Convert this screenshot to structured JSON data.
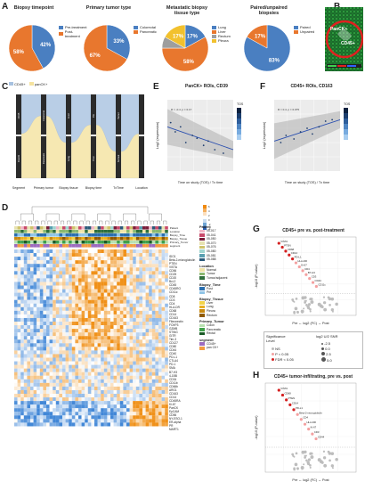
{
  "panelA": {
    "letter": "A",
    "pies": [
      {
        "title": "Biopsy timepoint",
        "values": [
          42,
          58
        ],
        "labels": [
          "42%",
          "58%"
        ],
        "legend": [
          "Pre-treatment",
          "Post-treatment"
        ],
        "colors": [
          "#4a7fc1",
          "#e8772e"
        ]
      },
      {
        "title": "Primary tumor type",
        "values": [
          33,
          67
        ],
        "labels": [
          "33%",
          "67%"
        ],
        "legend": [
          "Colorectal",
          "Pancreatic"
        ],
        "colors": [
          "#4a7fc1",
          "#e8772e"
        ]
      },
      {
        "title": "Metastatic biopsy tissue type",
        "values": [
          17,
          58,
          8,
          17
        ],
        "labels": [
          "17%",
          "58%",
          "",
          "17%"
        ],
        "legend": [
          "Lung",
          "Liver",
          "Rectum",
          "Pleura"
        ],
        "colors": [
          "#4a7fc1",
          "#e8772e",
          "#9e9e9e",
          "#f2c12e"
        ]
      },
      {
        "title": "Paired/unpaired biopsies",
        "values": [
          83,
          17
        ],
        "labels": [
          "83%",
          "17%"
        ],
        "legend": [
          "Paired",
          "Unpaired"
        ],
        "colors": [
          "#4a7fc1",
          "#e8772e"
        ]
      }
    ]
  },
  "panelB": {
    "letter": "B",
    "label1": "PanCK+",
    "label2": "CD45+"
  },
  "panelC": {
    "letter": "C",
    "legend": [
      "CD45+",
      "panCK+"
    ],
    "axis": [
      "Segment",
      "Primary tumor",
      "Biopsy tissue",
      "Biopsy time",
      "TxTime",
      "Location"
    ],
    "bar_labels": [
      "CD45",
      "PanCK",
      "Colorectal",
      "Pancreatic",
      "Liver",
      "Lung",
      "Pre",
      "Post",
      "Tumor",
      "Normal"
    ]
  },
  "panelE": {
    "letter": "E",
    "title": "PanCK+ ROIs, CD39",
    "xlabel": "Time on study (TOS) / Tx time",
    "ylabel": "Log2 (expression)",
    "stat": "R = -0.4, p = 0.17",
    "legend_title": "TOS",
    "chart_data": {
      "type": "scatter",
      "points": [
        [
          0.05,
          0.68
        ],
        [
          0.12,
          0.55
        ],
        [
          0.2,
          0.62
        ],
        [
          0.28,
          0.4
        ],
        [
          0.38,
          0.5
        ],
        [
          0.45,
          0.46
        ],
        [
          0.55,
          0.36
        ],
        [
          0.62,
          0.42
        ],
        [
          0.72,
          0.3
        ],
        [
          0.85,
          0.25
        ]
      ],
      "trend": [
        [
          0,
          0.62
        ],
        [
          1,
          0.3
        ]
      ]
    }
  },
  "panelF": {
    "letter": "F",
    "title": "CD45+ ROIs, CD163",
    "xlabel": "Time on study (TOS) / Tx time",
    "ylabel": "Log2 (expression)",
    "stat": "R = 0.4, p = 0.075",
    "legend_title": "TOS",
    "chart_data": {
      "type": "scatter",
      "points": [
        [
          0.1,
          0.4
        ],
        [
          0.18,
          0.5
        ],
        [
          0.3,
          0.45
        ],
        [
          0.4,
          0.55
        ],
        [
          0.5,
          0.6
        ],
        [
          0.58,
          0.52
        ],
        [
          0.68,
          0.62
        ],
        [
          0.78,
          0.7
        ],
        [
          0.88,
          0.72
        ]
      ],
      "trend": [
        [
          0,
          0.42
        ],
        [
          1,
          0.72
        ]
      ]
    }
  },
  "panelD": {
    "letter": "D",
    "row_labels": [
      "Patient",
      "Location",
      "Biopsy_Time",
      "Biopsy_Tissue",
      "Primary_Tumor",
      "segment"
    ],
    "genes": [
      "IDO1",
      "Beta-2-microglobulin",
      "PTEN",
      "VISTA",
      "CD56",
      "CD25",
      "CD20",
      "Bcl-2",
      "CD45",
      "CD45RO",
      "CD11c",
      "CD8",
      "CD3",
      "CD4",
      "HLA-DR",
      "CD68",
      "CD14",
      "CD163",
      "Fibronectin",
      "FOXP3",
      "GZMB",
      "STING",
      "GITR",
      "Tim-3",
      "CD127",
      "CD80",
      "CD44",
      "CD40",
      "PD-L1",
      "CTLA4",
      "PD-1",
      "SMA",
      "B7-H3",
      "4-1BB",
      "CD34",
      "CD11b",
      "CD66b",
      "ARG1",
      "CD163",
      "CD14",
      "CD45RA",
      "Ki-67",
      "PanCK",
      "EpCAM",
      "CD56",
      "NY-ESO-1",
      "ER-alpha",
      "PR",
      "MART1"
    ],
    "colorbar_ticks": [
      "6",
      "4",
      "2",
      "0",
      "-2",
      "-4"
    ],
    "legend": {
      "patient_title": "Patient",
      "patients": [
        "05-017",
        "05-041",
        "05-050",
        "05-070",
        "05-076",
        "05-080",
        "05-081",
        "05-088"
      ],
      "patient_colors": [
        "#f2b6c6",
        "#c94a6a",
        "#7a1e3a",
        "#e7e2b0",
        "#cfc36b",
        "#a0d6d0",
        "#5a9fb0",
        "#2c5a7a"
      ],
      "location_title": "Location",
      "locations": [
        "Normal",
        "Tumor",
        "Tumor/adjacent"
      ],
      "location_colors": [
        "#f0e4a8",
        "#8ab870",
        "#2f6f3c"
      ],
      "biopsy_time_title": "Biopsy_Time",
      "biopsy_times": [
        "Post",
        "Pre"
      ],
      "biopsy_time_colors": [
        "#2a6fb0",
        "#8fc4e6"
      ],
      "biopsy_tissue_title": "Biopsy_Tissue",
      "biopsy_tissues": [
        "Liver",
        "Lung",
        "Pleura",
        "Rectum"
      ],
      "biopsy_tissue_colors": [
        "#f2d34a",
        "#e8b020",
        "#c98a10",
        "#8f5a00"
      ],
      "primary_title": "Primary_Tumor",
      "primaries": [
        "Colon",
        "Pancreatic",
        "Rectal"
      ],
      "primary_colors": [
        "#b7e0b0",
        "#3fa04a",
        "#1a5a26"
      ],
      "segment_title": "segment",
      "segments": [
        "CD45+",
        "pan CK+"
      ],
      "segment_colors": [
        "#9c6bbf",
        "#f29b40"
      ]
    }
  },
  "panelG": {
    "letter": "G",
    "title": "CD45+ pre vs. post-treatment",
    "xlabel": "Pre ← log2 (FC) → Post",
    "ylabel": "-log10 (P-value)",
    "sig_title": "Significance Level",
    "sig_items": [
      "NS",
      "P < 0.05",
      "FDR < 0.05"
    ],
    "snr_title": "log2 U/2 SNR",
    "snr_items": [
      "-2.5",
      "0.0",
      "2.5",
      "5.0"
    ],
    "labels": [
      "VISTA",
      "PTEN",
      "CD68",
      "CD14",
      "PD-L1",
      "HLA-DR",
      "Ki-67",
      "CD4",
      "B7-H3",
      "CD3",
      "CD44",
      "CD11c"
    ]
  },
  "panelH": {
    "letter": "H",
    "title": "CD45+ tumor-infiltrating, pre vs. post",
    "xlabel": "Pre ← log2 (FC) → Post",
    "ylabel": "-log10 (P-value)",
    "labels": [
      "VISTA",
      "CD68",
      "PTEN",
      "CD14",
      "PD-L1",
      "Beta-2-microglobulin",
      "CD4",
      "HLA-DR",
      "Ki-67",
      "CD3",
      "CD44"
    ]
  }
}
